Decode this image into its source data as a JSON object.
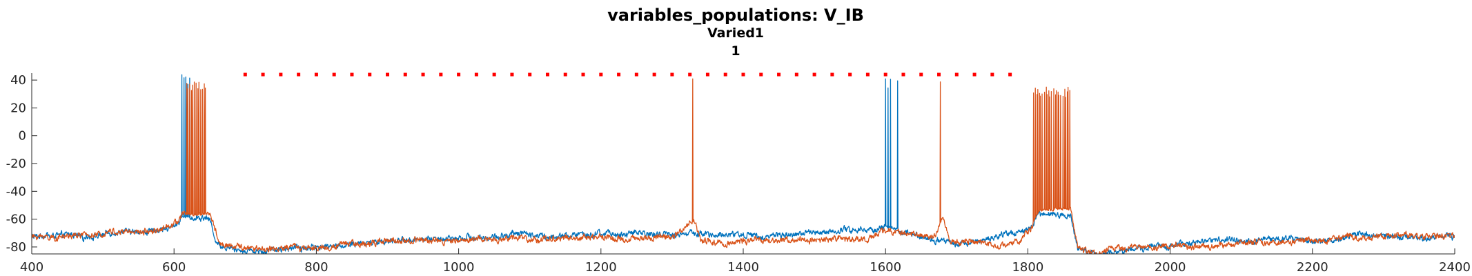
{
  "chart_data": {
    "type": "line",
    "title": "variables_populations: V_IB",
    "subtitle": "Varied1",
    "subtitle2": "1",
    "xlabel": "",
    "ylabel": "",
    "xlim": [
      400,
      2400
    ],
    "ylim": [
      -85,
      45
    ],
    "grid": false,
    "x_ticks": [
      "400",
      "600",
      "800",
      "1000",
      "1200",
      "1400",
      "1600",
      "1800",
      "2000",
      "2200",
      "2400"
    ],
    "y_ticks": [
      "40",
      "20",
      "0",
      "-20",
      "-40",
      "-60",
      "-80"
    ],
    "series": [
      {
        "color": "#0072BD",
        "baseline": [
          [
            400,
            -72
          ],
          [
            500,
            -71
          ],
          [
            560,
            -70
          ],
          [
            590,
            -68
          ],
          [
            605,
            -63
          ],
          [
            612,
            -58
          ],
          [
            650,
            -60
          ],
          [
            660,
            -78
          ],
          [
            700,
            -81
          ],
          [
            800,
            -79
          ],
          [
            900,
            -76
          ],
          [
            1000,
            -73
          ],
          [
            1100,
            -72
          ],
          [
            1200,
            -71
          ],
          [
            1300,
            -71
          ],
          [
            1400,
            -71
          ],
          [
            1500,
            -70
          ],
          [
            1580,
            -68
          ],
          [
            1600,
            -65
          ],
          [
            1640,
            -70
          ],
          [
            1700,
            -76
          ],
          [
            1750,
            -72
          ],
          [
            1790,
            -70
          ],
          [
            1805,
            -65
          ],
          [
            1815,
            -57
          ],
          [
            1860,
            -55
          ],
          [
            1870,
            -80
          ],
          [
            1900,
            -83
          ],
          [
            1950,
            -79
          ],
          [
            2100,
            -76
          ],
          [
            2300,
            -72
          ],
          [
            2400,
            -71
          ]
        ],
        "spike_bursts": [
          {
            "start": 611,
            "end": 622,
            "count": 5,
            "peak": 44
          },
          {
            "start": 1600,
            "end": 1617,
            "count": 6,
            "peak": 42
          }
        ]
      },
      {
        "color": "#D95319",
        "baseline": [
          [
            400,
            -73
          ],
          [
            500,
            -72
          ],
          [
            560,
            -71
          ],
          [
            590,
            -68
          ],
          [
            605,
            -64
          ],
          [
            615,
            -57
          ],
          [
            650,
            -56
          ],
          [
            665,
            -79
          ],
          [
            700,
            -82
          ],
          [
            800,
            -80
          ],
          [
            900,
            -77
          ],
          [
            1000,
            -74
          ],
          [
            1100,
            -74
          ],
          [
            1200,
            -73
          ],
          [
            1300,
            -74
          ],
          [
            1320,
            -66
          ],
          [
            1330,
            -60
          ],
          [
            1340,
            -74
          ],
          [
            1400,
            -76
          ],
          [
            1500,
            -75
          ],
          [
            1580,
            -72
          ],
          [
            1600,
            -66
          ],
          [
            1640,
            -68
          ],
          [
            1670,
            -72
          ],
          [
            1680,
            -58
          ],
          [
            1690,
            -76
          ],
          [
            1750,
            -78
          ],
          [
            1790,
            -74
          ],
          [
            1805,
            -65
          ],
          [
            1815,
            -54
          ],
          [
            1860,
            -52
          ],
          [
            1870,
            -80
          ],
          [
            1900,
            -84
          ],
          [
            1950,
            -80
          ],
          [
            2100,
            -77
          ],
          [
            2300,
            -73
          ],
          [
            2400,
            -72
          ]
        ],
        "spike_bursts": [
          {
            "start": 618,
            "end": 645,
            "count": 22,
            "peak": 40
          },
          {
            "start": 1329,
            "end": 1329,
            "count": 1,
            "peak": 44
          },
          {
            "start": 1677,
            "end": 1677,
            "count": 1,
            "peak": 43
          },
          {
            "start": 1808,
            "end": 1860,
            "count": 45,
            "peak": 35
          }
        ]
      }
    ],
    "dotted_line": {
      "color": "#FF0000",
      "y": 44,
      "x_start": 700,
      "x_end": 1780,
      "step": 25
    }
  }
}
